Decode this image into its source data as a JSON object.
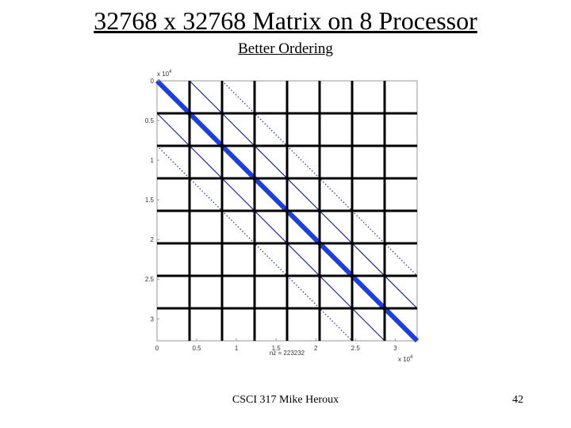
{
  "slide": {
    "title": "32768 x 32768 Matrix on 8 Processor",
    "subtitle": "Better Ordering",
    "footer": "CSCI 317 Mike Heroux",
    "page_number": "42"
  },
  "figure": {
    "y_exponent": "x 10",
    "y_exponent_power": "4",
    "x_exponent": "x 10",
    "x_exponent_power": "4",
    "nz_label": "nz = 223232",
    "x_ticks": [
      {
        "value": 0,
        "label": "0"
      },
      {
        "value": 0.5,
        "label": "0.5"
      },
      {
        "value": 1,
        "label": "1"
      },
      {
        "value": 1.5,
        "label": "1.5"
      },
      {
        "value": 2,
        "label": "2"
      },
      {
        "value": 2.5,
        "label": "2.5"
      },
      {
        "value": 3,
        "label": "3"
      }
    ],
    "y_ticks": [
      {
        "value": 0,
        "label": "0"
      },
      {
        "value": 0.5,
        "label": "0.5"
      },
      {
        "value": 1,
        "label": "1"
      },
      {
        "value": 1.5,
        "label": "1.5"
      },
      {
        "value": 2,
        "label": "2"
      },
      {
        "value": 2.5,
        "label": "2.5"
      },
      {
        "value": 3,
        "label": "3"
      }
    ],
    "axis_max": 3.2768,
    "partition_lines": [
      0.4096,
      0.8192,
      1.2288,
      1.6384,
      2.048,
      2.4576,
      2.8672
    ],
    "diagonals": [
      {
        "offset": 0,
        "style": "main"
      },
      {
        "offset": 0.4096,
        "style": "solid"
      },
      {
        "offset": -0.4096,
        "style": "solid"
      },
      {
        "offset": 0.8192,
        "style": "dotted"
      },
      {
        "offset": -0.8192,
        "style": "dotted"
      }
    ],
    "colors": {
      "main_diagonal": "#1e3fe0",
      "off_diagonal": "#1a2f9a",
      "grid": "#000000",
      "frame": "#9a9a9a",
      "tick_text": "#333333"
    }
  }
}
